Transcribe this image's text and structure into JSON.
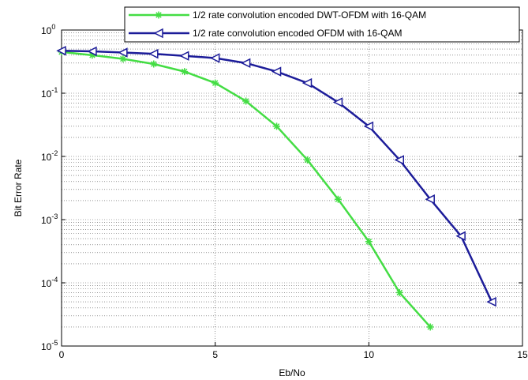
{
  "chart_data": {
    "type": "line",
    "title": "",
    "xlabel": "Eb/No",
    "ylabel": "Bit Error Rate",
    "xlim": [
      0,
      15
    ],
    "ylim": [
      1e-05,
      1
    ],
    "yscale": "log",
    "grid": true,
    "legend_position": "top-right",
    "x_ticks": [
      "0",
      "5",
      "10",
      "15"
    ],
    "y_ticks": [
      {
        "mantissa": "10",
        "exp": "0"
      },
      {
        "mantissa": "10",
        "exp": "-1"
      },
      {
        "mantissa": "10",
        "exp": "-2"
      },
      {
        "mantissa": "10",
        "exp": "-3"
      },
      {
        "mantissa": "10",
        "exp": "-4"
      },
      {
        "mantissa": "10",
        "exp": "-5"
      }
    ],
    "series": [
      {
        "name": "1/2 rate convolution encoded DWT-OFDM with 16-QAM",
        "color": "#44dd44",
        "marker": "star",
        "x": [
          0,
          1,
          2,
          3,
          4,
          5,
          6,
          7,
          8,
          9,
          10,
          11,
          12
        ],
        "y": [
          0.45,
          0.4,
          0.35,
          0.29,
          0.22,
          0.145,
          0.075,
          0.03,
          0.0088,
          0.0021,
          0.00045,
          7e-05,
          2e-05
        ]
      },
      {
        "name": "1/2 rate convolution encoded OFDM with 16-QAM",
        "color": "#1c1c99",
        "marker": "triangle-left",
        "x": [
          0,
          1,
          2,
          3,
          4,
          5,
          6,
          7,
          8,
          9,
          10,
          11,
          12,
          13,
          14
        ],
        "y": [
          0.47,
          0.46,
          0.44,
          0.42,
          0.39,
          0.36,
          0.3,
          0.22,
          0.145,
          0.072,
          0.03,
          0.0088,
          0.0021,
          0.00055,
          5e-05
        ]
      }
    ]
  }
}
